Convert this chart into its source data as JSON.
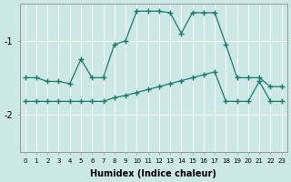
{
  "xlabel": "Humidex (Indice chaleur)",
  "bg_color": "#cce8e5",
  "line_color": "#1a7a6e",
  "grid_color": "#ffffff",
  "xlim": [
    -0.5,
    23.5
  ],
  "ylim": [
    -2.5,
    -0.5
  ],
  "yticks": [
    -2,
    -1
  ],
  "ytick_labels": [
    "-2",
    "-1"
  ],
  "xticks": [
    0,
    1,
    2,
    3,
    4,
    5,
    6,
    7,
    8,
    9,
    10,
    11,
    12,
    13,
    14,
    15,
    16,
    17,
    18,
    19,
    20,
    21,
    22,
    23
  ],
  "curve1_x": [
    0,
    1,
    2,
    3,
    4,
    5,
    6,
    7,
    8,
    9,
    10,
    11,
    12,
    13,
    14,
    15,
    16,
    17,
    18,
    19,
    20,
    21,
    22,
    23
  ],
  "curve1_y": [
    -1.5,
    -1.5,
    -1.55,
    -1.55,
    -1.58,
    -1.25,
    -1.5,
    -1.5,
    -1.05,
    -1.0,
    -0.6,
    -0.6,
    -0.6,
    -0.62,
    -0.9,
    -0.62,
    -0.62,
    -0.62,
    -1.05,
    -1.5,
    -1.5,
    -1.5,
    -1.62,
    -1.62
  ],
  "curve2_x": [
    0,
    1,
    2,
    3,
    4,
    5,
    6,
    7,
    8,
    9,
    10,
    11,
    12,
    13,
    14,
    15,
    16,
    17,
    18,
    19,
    20,
    21,
    22,
    23
  ],
  "curve2_y": [
    -1.82,
    -1.82,
    -1.82,
    -1.82,
    -1.82,
    -1.82,
    -1.82,
    -1.82,
    -1.77,
    -1.74,
    -1.7,
    -1.66,
    -1.62,
    -1.58,
    -1.54,
    -1.5,
    -1.46,
    -1.42,
    -1.82,
    -1.82,
    -1.82,
    -1.55,
    -1.82,
    -1.82
  ],
  "markersize": 4.5,
  "linewidth": 0.9
}
